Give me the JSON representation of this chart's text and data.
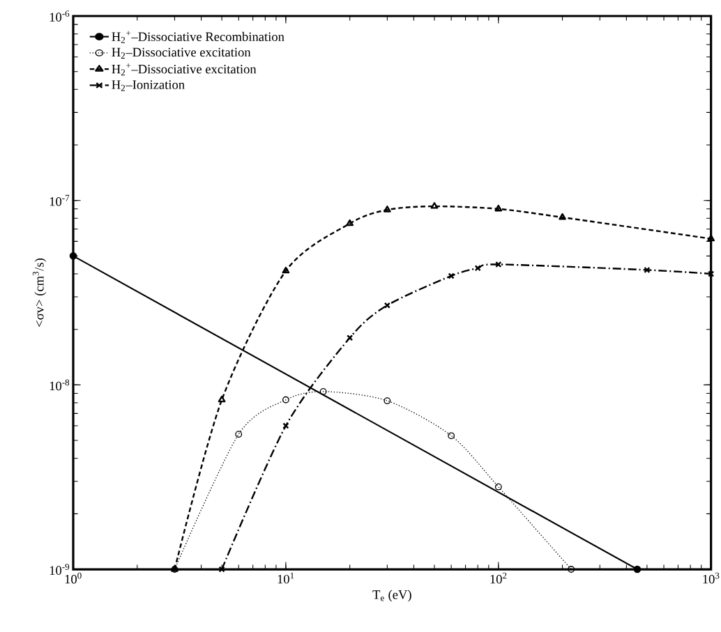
{
  "chart_data": {
    "type": "line",
    "xlabel": "T$_{e}$ (eV)",
    "ylabel": "<σv> (cm$^{3}$/s)",
    "log": "xy",
    "xlim": [
      1,
      1000
    ],
    "ylim": [
      1e-09,
      1e-06
    ],
    "xticks": [
      {
        "value": 1,
        "label": "10$^{0}$"
      },
      {
        "value": 10,
        "label": "10$^{1}$"
      },
      {
        "value": 100,
        "label": "10$^{2}$"
      },
      {
        "value": 1000,
        "label": "10$^{3}$"
      }
    ],
    "yticks": [
      {
        "value": 1e-09,
        "label": "10$^{-9}$"
      },
      {
        "value": 1e-08,
        "label": "10$^{-8}$"
      },
      {
        "value": 1e-07,
        "label": "10$^{-7}$"
      },
      {
        "value": 1e-06,
        "label": "10$^{-6}$"
      }
    ],
    "legend": "top left",
    "series": [
      {
        "name": "H$_{2}$$^{+}$–Dissociative Recombination",
        "color": "#000000",
        "marker": "dot",
        "line_style": "solid",
        "x": [
          1,
          450
        ],
        "values": [
          5e-08,
          1e-09
        ]
      },
      {
        "name": "H$_{2}$–Dissociative excitation",
        "color": "#000000",
        "marker": "circle",
        "line_style": "dotted",
        "x": [
          3,
          6,
          10,
          15,
          30,
          60,
          100,
          220
        ],
        "values": [
          1e-09,
          5.4e-09,
          8.3e-09,
          9.2e-09,
          8.2e-09,
          5.3e-09,
          2.8e-09,
          1e-09
        ]
      },
      {
        "name": "H$_{2}$$^{+}$–Dissociative excitation",
        "color": "#000000",
        "marker": "triangle",
        "line_style": "dashed",
        "x": [
          3,
          5,
          10,
          20,
          30,
          50,
          100,
          200,
          1000
        ],
        "values": [
          1e-09,
          8.3e-09,
          4.15e-08,
          7.5e-08,
          8.9e-08,
          9.3e-08,
          9e-08,
          8.1e-08,
          6.2e-08
        ]
      },
      {
        "name": "H$_{2}$–Ionization",
        "color": "#000000",
        "marker": "cross",
        "line_style": "dashdot",
        "x": [
          5,
          10,
          20,
          30,
          60,
          80,
          100,
          500,
          1000
        ],
        "values": [
          1e-09,
          6e-09,
          1.8e-08,
          2.7e-08,
          3.9e-08,
          4.3e-08,
          4.5e-08,
          4.2e-08,
          4e-08
        ]
      }
    ]
  }
}
